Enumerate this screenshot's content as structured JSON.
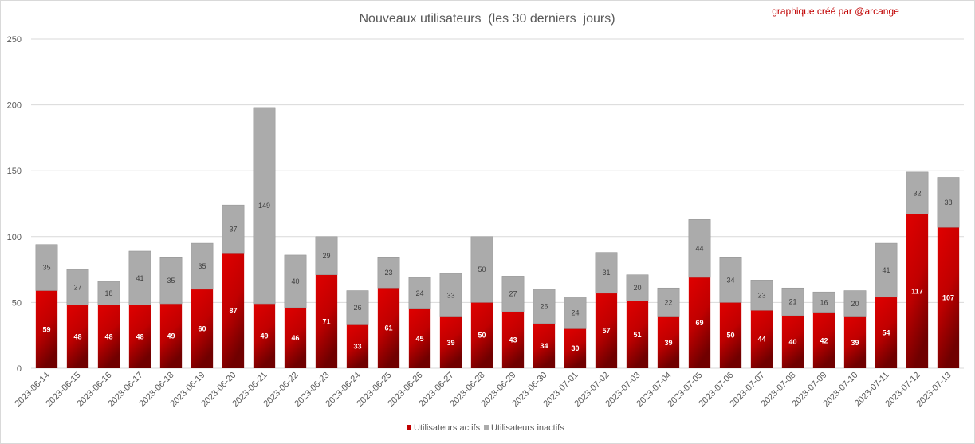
{
  "chart_data": {
    "type": "bar",
    "stacked": true,
    "title": "Nouveaux utilisateurs  (les 30 derniers  jours)",
    "credit": "graphique créé par @arcange",
    "xlabel": "",
    "ylabel": "",
    "ylim": [
      0,
      250
    ],
    "yticks": [
      0,
      50,
      100,
      150,
      200,
      250
    ],
    "grid": true,
    "legend_position": "bottom",
    "categories": [
      "2023-06-14",
      "2023-06-15",
      "2023-06-16",
      "2023-06-17",
      "2023-06-18",
      "2023-06-19",
      "2023-06-20",
      "2023-06-21",
      "2023-06-22",
      "2023-06-23",
      "2023-06-24",
      "2023-06-25",
      "2023-06-26",
      "2023-06-27",
      "2023-06-28",
      "2023-06-29",
      "2023-06-30",
      "2023-07-01",
      "2023-07-02",
      "2023-07-03",
      "2023-07-04",
      "2023-07-05",
      "2023-07-06",
      "2023-07-07",
      "2023-07-08",
      "2023-07-09",
      "2023-07-10",
      "2023-07-11",
      "2023-07-12",
      "2023-07-13"
    ],
    "series": [
      {
        "name": "Utilisateurs actifs",
        "color": "#c00000",
        "values": [
          59,
          48,
          48,
          48,
          49,
          60,
          87,
          49,
          46,
          71,
          33,
          61,
          45,
          39,
          50,
          43,
          34,
          30,
          57,
          51,
          39,
          69,
          50,
          44,
          40,
          42,
          39,
          54,
          117,
          107
        ]
      },
      {
        "name": "Utilisateurs inactifs",
        "color": "#ababab",
        "values": [
          35,
          27,
          18,
          41,
          35,
          35,
          37,
          149,
          40,
          29,
          26,
          23,
          24,
          33,
          50,
          27,
          26,
          24,
          31,
          20,
          22,
          44,
          34,
          23,
          21,
          16,
          20,
          41,
          32,
          38
        ]
      }
    ]
  }
}
